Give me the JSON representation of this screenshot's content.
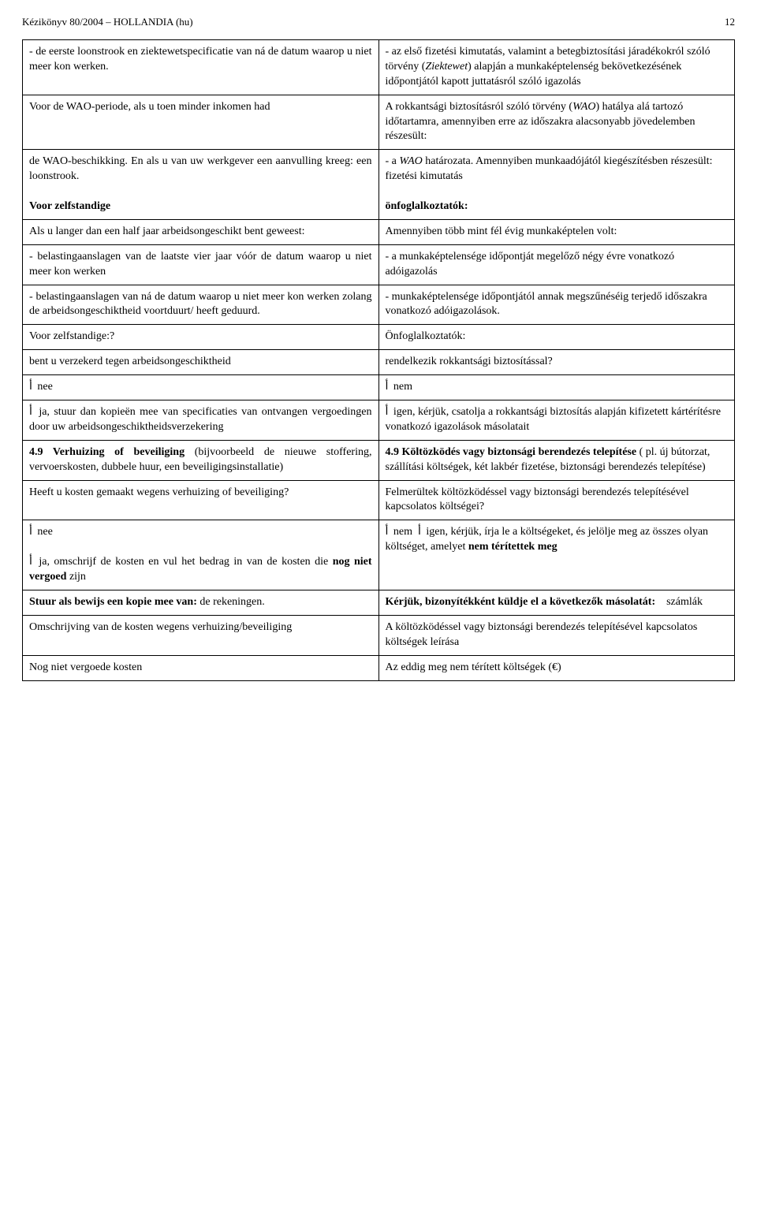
{
  "header": {
    "title": "Kézikönyv 80/2004 – HOLLANDIA (hu)",
    "page_number": "12"
  },
  "rows": [
    {
      "left_html": "- de eerste loonstrook en ziektewetspecificatie van ná de datum waarop u niet meer kon werken.",
      "right_html": "- az első fizetési kimutatás, valamint a betegbiztosítási járadékokról szóló törvény (<span class=\"italic\">Ziektewet</span>) alapján a munkaképtelenség bekövetkezésének időpontjától kapott juttatásról szóló igazolás"
    },
    {
      "left_html": "Voor de WAO-periode, als u toen minder inkomen had",
      "right_html": "A rokkantsági biztosításról szóló törvény (<span class=\"italic\">WAO</span>) hatálya alá tartozó időtartamra, amennyiben erre az időszakra alacsonyabb jövedelemben részesült:"
    },
    {
      "left_html": "de WAO-beschikking. En als u van uw werkgever een aanvulling kreeg: een loonstrook.<br><br><span class=\"bold\">Voor zelfstandige</span>",
      "right_html": "- a <span class=\"italic\">WAO</span> határozata. Amennyiben munkaadójától kiegészítésben részesült: fizetési kimutatás<br><br><span class=\"bold\">önfoglalkoztatók:</span>"
    },
    {
      "left_html": "Als u langer dan een half jaar arbeidsongeschikt bent geweest:",
      "right_html": "Amennyiben több mint fél évig munkaképtelen volt:"
    },
    {
      "left_html": "- belastingaanslagen van de laatste vier jaar vóór de datum waarop u niet meer kon werken",
      "right_html": "- a munkaképtelensége időpontját megelőző négy évre vonatkozó adóigazolás"
    },
    {
      "left_html": "- belastingaanslagen van ná de datum waarop u niet meer kon werken zolang de arbeidsongeschiktheid voortduurt/ heeft geduurd.",
      "right_html": "- munkaképtelensége időpontjától annak megszűnéséig terjedő időszakra vonatkozó adóigazolások."
    },
    {
      "left_html": "Voor zelfstandige:?",
      "right_html": "Önfoglalkoztatók:"
    },
    {
      "left_html": "bent u verzekerd tegen arbeidsongeschiktheid",
      "right_html": "rendelkezik rokkantsági biztosítással?"
    },
    {
      "left_html": "<span class=\"checkbox\">أ</span> nee",
      "right_html": "<span class=\"checkbox\">أ</span> nem"
    },
    {
      "left_html": "<span class=\"checkbox\">أ</span> ja, stuur dan kopieën mee van specificaties van ontvangen vergoedingen door uw arbeidsongeschiktheidsverzekering",
      "right_html": "<span class=\"checkbox\">أ</span> igen, kérjük, csatolja a rokkantsági biztosítás alapján kifizetett kártérítésre vonatkozó igazolások másolatait"
    },
    {
      "left_html": "<span class=\"bold\">4.9 Verhuizing of beveiliging</span> (bijvoorbeeld de nieuwe stoffering, vervoerskosten, dubbele huur, een beveiligingsinstallatie)",
      "right_html": "<span class=\"bold\">4.9 Költözködés vagy biztonsági berendezés telepítése</span> ( pl. új bútorzat, szállítási költségek, két lakbér fizetése, biztonsági berendezés telepítése)"
    },
    {
      "left_html": "Heeft u kosten gemaakt wegens verhuizing of beveiliging?",
      "right_html": "Felmerültek költözködéssel vagy biztonsági berendezés telepítésével kapcsolatos költségei?"
    },
    {
      "left_html": "<span class=\"checkbox\">أ</span> nee<br><br><span class=\"checkbox\">أ</span> ja, omschrijf de kosten en vul het bedrag in van de kosten die <span class=\"bold\">nog niet vergoed</span> zijn",
      "right_html": "<span class=\"checkbox\">أ</span> nem&nbsp;&nbsp;<span class=\"checkbox\">أ</span> igen, kérjük, írja le a költségeket, és jelölje meg az összes olyan költséget, amelyet <span class=\"bold\">nem térítettek meg</span>"
    },
    {
      "left_html": "<span class=\"bold\">Stuur als bewijs een kopie mee van:</span> de rekeningen.",
      "right_html": "<span class=\"bold\">Kérjük, bizonyítékként küldje el a következők másolatát:</span>&nbsp;&nbsp;&nbsp;&nbsp;számlák"
    },
    {
      "left_html": "Omschrijving van de kosten wegens verhuizing/beveiliging",
      "right_html": "A költözködéssel vagy biztonsági berendezés telepítésével kapcsolatos költségek leírása"
    },
    {
      "left_html": "Nog niet vergoede kosten",
      "right_html": "Az eddig meg nem térített költségek (€)"
    }
  ]
}
